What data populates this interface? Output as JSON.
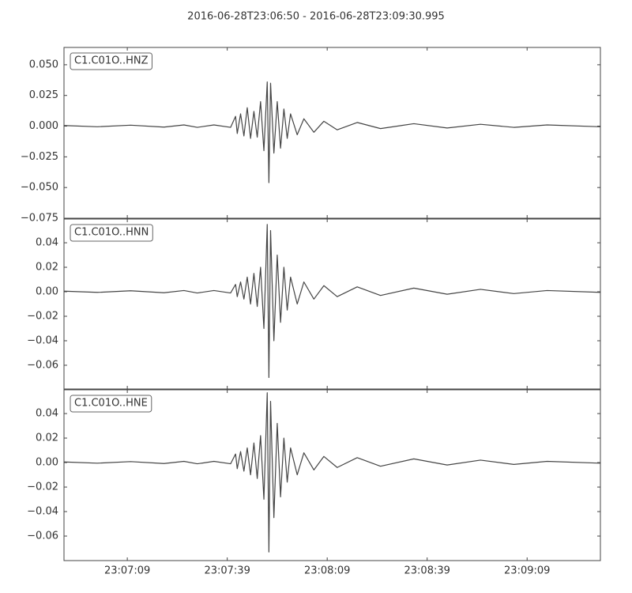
{
  "title": "2016-06-28T23:06:50  -  2016-06-28T23:09:30.995",
  "chart_data": [
    {
      "type": "line",
      "label": "C1.C01O..HNZ",
      "color": "#444444",
      "x": [
        0,
        10,
        20,
        30,
        36,
        40,
        45,
        50,
        51.5,
        52,
        53,
        54,
        55,
        56,
        57,
        58,
        59,
        60,
        61,
        61.5,
        62,
        63,
        64,
        65,
        66,
        67,
        68,
        70,
        72,
        75,
        78,
        82,
        88,
        95,
        105,
        115,
        125,
        135,
        145,
        161
      ],
      "values": [
        0.0005,
        -0.0005,
        0.0008,
        -0.0008,
        0.001,
        -0.001,
        0.001,
        -0.001,
        0.008,
        -0.006,
        0.01,
        -0.008,
        0.015,
        -0.01,
        0.012,
        -0.009,
        0.02,
        -0.02,
        0.036,
        -0.046,
        0.035,
        -0.022,
        0.02,
        -0.018,
        0.014,
        -0.01,
        0.01,
        -0.007,
        0.006,
        -0.005,
        0.004,
        -0.003,
        0.003,
        -0.002,
        0.002,
        -0.0015,
        0.0015,
        -0.001,
        0.001,
        -0.0005
      ],
      "xlim": [
        0,
        160.995
      ],
      "ylim": [
        -0.075,
        0.0641
      ],
      "yticks": [
        {
          "value": 0.05,
          "label": "0.050"
        },
        {
          "value": 0.025,
          "label": "0.025"
        },
        {
          "value": 0,
          "label": "0.000"
        },
        {
          "value": -0.025,
          "label": "−0.025"
        },
        {
          "value": -0.05,
          "label": "−0.050"
        },
        {
          "value": -0.075,
          "label": "−0.075"
        }
      ]
    },
    {
      "type": "line",
      "label": "C1.C01O..HNN",
      "color": "#444444",
      "x": [
        0,
        10,
        20,
        30,
        36,
        40,
        45,
        50,
        51.5,
        52,
        53,
        54,
        55,
        56,
        57,
        58,
        59,
        60,
        61,
        61.5,
        62,
        63,
        64,
        65,
        66,
        67,
        68,
        70,
        72,
        75,
        78,
        82,
        88,
        95,
        105,
        115,
        125,
        135,
        145,
        161
      ],
      "values": [
        0.0005,
        -0.0005,
        0.0008,
        -0.0008,
        0.001,
        -0.001,
        0.001,
        -0.001,
        0.006,
        -0.004,
        0.008,
        -0.006,
        0.012,
        -0.01,
        0.015,
        -0.012,
        0.02,
        -0.03,
        0.055,
        -0.07,
        0.05,
        -0.04,
        0.03,
        -0.025,
        0.02,
        -0.015,
        0.012,
        -0.01,
        0.008,
        -0.006,
        0.005,
        -0.004,
        0.004,
        -0.003,
        0.003,
        -0.002,
        0.002,
        -0.0015,
        0.001,
        -0.0005
      ],
      "xlim": [
        0,
        160.995
      ],
      "ylim": [
        -0.0794,
        0.0594
      ],
      "yticks": [
        {
          "value": 0.04,
          "label": "0.04"
        },
        {
          "value": 0.02,
          "label": "0.02"
        },
        {
          "value": 0,
          "label": "0.00"
        },
        {
          "value": -0.02,
          "label": "−0.02"
        },
        {
          "value": -0.04,
          "label": "−0.04"
        },
        {
          "value": -0.06,
          "label": "−0.06"
        }
      ]
    },
    {
      "type": "line",
      "label": "C1.C01O..HNE",
      "color": "#444444",
      "x": [
        0,
        10,
        20,
        30,
        36,
        40,
        45,
        50,
        51.5,
        52,
        53,
        54,
        55,
        56,
        57,
        58,
        59,
        60,
        61,
        61.5,
        62,
        63,
        64,
        65,
        66,
        67,
        68,
        70,
        72,
        75,
        78,
        82,
        88,
        95,
        105,
        115,
        125,
        135,
        145,
        161
      ],
      "values": [
        0.0005,
        -0.0005,
        0.0008,
        -0.0008,
        0.001,
        -0.001,
        0.001,
        -0.001,
        0.007,
        -0.005,
        0.009,
        -0.007,
        0.012,
        -0.01,
        0.016,
        -0.013,
        0.022,
        -0.03,
        0.057,
        -0.073,
        0.05,
        -0.045,
        0.032,
        -0.028,
        0.02,
        -0.016,
        0.012,
        -0.01,
        0.008,
        -0.006,
        0.005,
        -0.004,
        0.004,
        -0.003,
        0.003,
        -0.002,
        0.002,
        -0.0015,
        0.001,
        -0.0005
      ],
      "xlim": [
        0,
        160.995
      ],
      "xticks": [
        {
          "value": 19,
          "label": "23:07:09"
        },
        {
          "value": 49,
          "label": "23:07:39"
        },
        {
          "value": 79,
          "label": "23:08:09"
        },
        {
          "value": 109,
          "label": "23:08:39"
        },
        {
          "value": 139,
          "label": "23:09:09"
        }
      ],
      "ylim": [
        -0.08,
        0.0594
      ],
      "yticks": [
        {
          "value": 0.04,
          "label": "0.04"
        },
        {
          "value": 0.02,
          "label": "0.02"
        },
        {
          "value": 0,
          "label": "0.00"
        },
        {
          "value": -0.02,
          "label": "−0.02"
        },
        {
          "value": -0.04,
          "label": "−0.04"
        },
        {
          "value": -0.06,
          "label": "−0.06"
        }
      ]
    }
  ]
}
